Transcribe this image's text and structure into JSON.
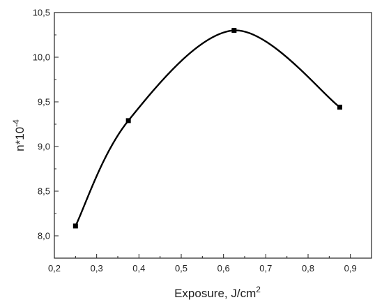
{
  "chart_data": {
    "type": "line",
    "title": "",
    "xlabel": "Exposure, J/cm",
    "xlabel_sup": "2",
    "ylabel": "n*10",
    "ylabel_sup": "-4",
    "xlim": [
      0.2,
      0.95
    ],
    "ylim": [
      7.75,
      10.5
    ],
    "x_ticks": [
      0.2,
      0.3,
      0.4,
      0.5,
      0.6,
      0.7,
      0.8,
      0.9
    ],
    "x_tick_labels": [
      "0,2",
      "0,3",
      "0,4",
      "0,5",
      "0,6",
      "0,7",
      "0,8",
      "0,9"
    ],
    "y_ticks": [
      8.0,
      8.5,
      9.0,
      9.5,
      10.0,
      10.5
    ],
    "y_tick_labels": [
      "8,0",
      "8,5",
      "9,0",
      "9,5",
      "10,0",
      "10,5"
    ],
    "grid": false,
    "legend": "none",
    "series": [
      {
        "color": "#000000",
        "marker": "square",
        "x": [
          0.25,
          0.375,
          0.625,
          0.875
        ],
        "y": [
          8.11,
          9.29,
          10.3,
          9.44
        ]
      }
    ]
  }
}
